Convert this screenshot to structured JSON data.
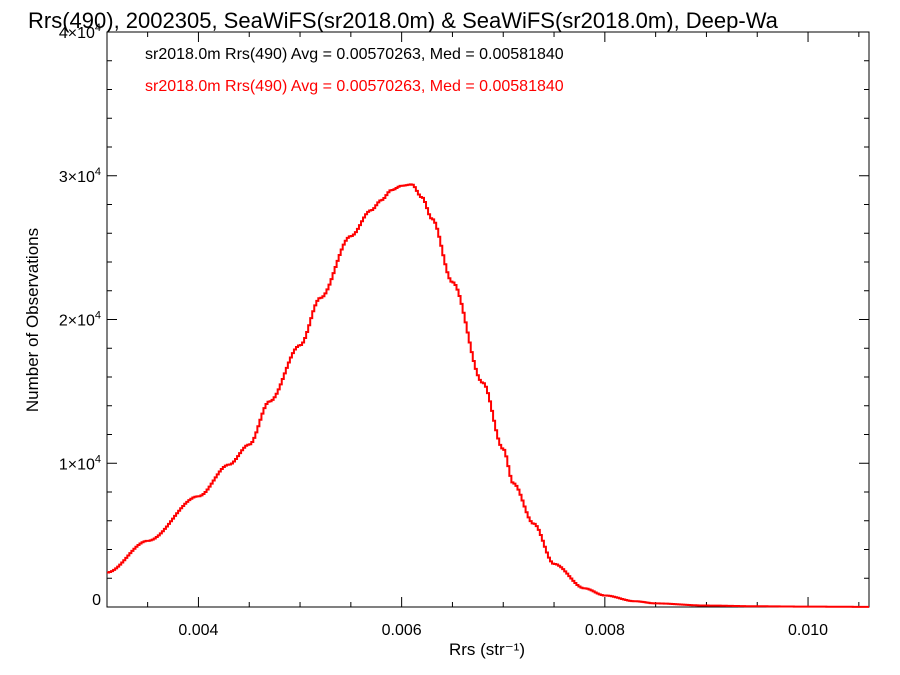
{
  "chart_data": {
    "type": "line",
    "title": "Rrs(490), 2002305, SeaWiFS(sr2018.0m) & SeaWiFS(sr2018.0m), Deep-Wa",
    "xlabel": "Rrs (str⁻¹)",
    "ylabel": "Number of Observations",
    "xlim": [
      0.0031,
      0.0106
    ],
    "ylim": [
      0,
      40000
    ],
    "grid": false,
    "x_ticks": [
      {
        "value": 0.004,
        "label": "0.004"
      },
      {
        "value": 0.006,
        "label": "0.006"
      },
      {
        "value": 0.008,
        "label": "0.008"
      },
      {
        "value": 0.01,
        "label": "0.010"
      }
    ],
    "y_ticks": [
      {
        "value": 0,
        "label": "0"
      },
      {
        "value": 10000,
        "label": "1×10",
        "exp": "4"
      },
      {
        "value": 20000,
        "label": "2×10",
        "exp": "4"
      },
      {
        "value": 30000,
        "label": "3×10",
        "exp": "4"
      },
      {
        "value": 40000,
        "label": "4×10",
        "exp": "4"
      }
    ],
    "annotations": [
      {
        "text": "sr2018.0m Rrs(490) Avg = 0.00570263, Med = 0.00581840",
        "color": "#000000"
      },
      {
        "text": "sr2018.0m Rrs(490) Avg = 0.00570263, Med = 0.00581840",
        "color": "#ff0000"
      }
    ],
    "series": [
      {
        "color": "#ff0000",
        "step": "histogram",
        "x": [
          0.0031,
          0.0035,
          0.004,
          0.0043,
          0.0045,
          0.0047,
          0.005,
          0.0052,
          0.0055,
          0.0057,
          0.0058,
          0.0059,
          0.006,
          0.0061,
          0.0062,
          0.0063,
          0.0065,
          0.0068,
          0.007,
          0.0071,
          0.0073,
          0.0075,
          0.0078,
          0.008,
          0.0083,
          0.0085,
          0.009,
          0.0095,
          0.01,
          0.0106
        ],
        "y": [
          2400,
          4600,
          7700,
          9900,
          11300,
          14300,
          18200,
          21500,
          25800,
          27600,
          28300,
          29000,
          29300,
          29400,
          28500,
          27000,
          22600,
          15600,
          11000,
          8600,
          5800,
          3000,
          1300,
          800,
          400,
          250,
          100,
          50,
          25,
          10
        ]
      }
    ]
  }
}
